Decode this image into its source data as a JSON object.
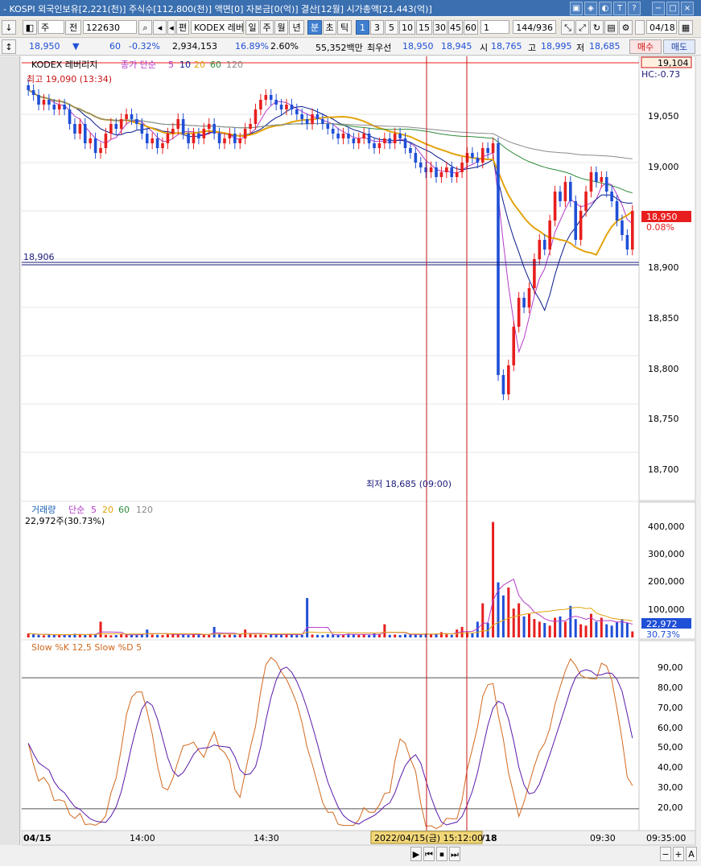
{
  "window": {
    "title": "- KOSPI 외국인보유[2,221(천)] 주식수[112,800(천)] 액면[0] 자본금[0(억)] 결산[12월] 시가총액[21,443(억)]",
    "buttons": [
      "▣",
      "◈",
      "◐",
      "T",
      "?",
      "−",
      "□",
      "×"
    ]
  },
  "toolbar": {
    "type_select": "주",
    "mode": "전",
    "code": "122630",
    "name_prefix": "편",
    "name": "KODEX 레버",
    "periods": [
      "일",
      "주",
      "월",
      "년",
      "분",
      "초",
      "틱"
    ],
    "selected_period": "분",
    "intervals": [
      "1",
      "3",
      "5",
      "10",
      "15",
      "30",
      "45",
      "60"
    ],
    "selected_interval": "1",
    "interval_value": "1",
    "count": "144/936",
    "date": "04/18"
  },
  "quote": {
    "price": "18,950",
    "arrow": "▼",
    "change": "60",
    "change_pct": "-0.32%",
    "volume": "2,934,153",
    "turnover_pct": "16.89%",
    "vol_ratio": "2.60%",
    "amount": "55,352백만",
    "best_label": "최우선",
    "best_ask": "18,950",
    "best_bid": "18,945",
    "open_label": "시",
    "open": "18,765",
    "high_label": "고",
    "high": "18,995",
    "low_label": "저",
    "low": "18,685",
    "buy": "매수",
    "sell": "매도"
  },
  "colors": {
    "up": "#e81e1e",
    "down": "#1f4fd6",
    "ma5": "#b43cc8",
    "ma10": "#0a1a8c",
    "ma20": "#e2a30c",
    "ma60": "#2e8b3a",
    "ma120": "#8a8a8a",
    "stoch_k": "#d2691e",
    "stoch_d": "#5a1aa8"
  },
  "price_panel": {
    "legend_name": "KODEX 레버리지",
    "legend_ma": "종가 단순",
    "legend_periods": [
      "5",
      "10",
      "20",
      "60",
      "120"
    ],
    "high_note": "최고 19,090 (13:34)",
    "low_note": "최저 18,685 (09:00)",
    "hline_label": "18,906",
    "top_label": "19,104",
    "hc_label": "HC:-0.73",
    "cur_price_label": "18,950",
    "cur_pct_label": "0.08%",
    "y_ticks": [
      "19,050",
      "19,000",
      "18,950",
      "18,900",
      "18,850",
      "18,800",
      "18,750",
      "18,700"
    ]
  },
  "volume_panel": {
    "legend_name": "거래량",
    "legend_ma": "단순",
    "legend_periods": [
      "5",
      "20",
      "60",
      "120"
    ],
    "value_note": "22,972주(30.73%)",
    "y_ticks": [
      "400,000",
      "300,000",
      "200,000",
      "100,000"
    ],
    "cur_label": "22,972",
    "cur_pct": "30.73%"
  },
  "stoch_panel": {
    "legend": "Slow %K 12,5  Slow %D 5",
    "y_ticks": [
      "90,00",
      "80,00",
      "70,00",
      "60,00",
      "50,00",
      "40,00",
      "30,00",
      "20,00"
    ]
  },
  "time_axis": {
    "labels": [
      "04/15",
      "14:00",
      "14:30",
      "04/18",
      "09:30"
    ],
    "cursor_label": "2022/04/15(금) 15:12:00",
    "right_label": "09:35:00"
  },
  "bottom_controls": [
    "▶",
    "⏮",
    "⏹",
    "⏭",
    "−",
    "+",
    "A"
  ],
  "chart_data": {
    "type": "candlestick",
    "x_axis_labels": [
      "04/15",
      "14:00",
      "14:30",
      "04/18",
      "09:30"
    ],
    "price_ylim": [
      18650,
      19110
    ],
    "volume_ylim": [
      0,
      460000
    ],
    "stoch_ylim": [
      10,
      97
    ],
    "y_ticks_price": [
      19050,
      19000,
      18950,
      18900,
      18850,
      18800,
      18750,
      18700
    ],
    "reference_line": 18906,
    "current_price": 18950,
    "day_high": 19090,
    "day_low": 18685,
    "candles_close": [
      19075,
      19070,
      19060,
      19065,
      19060,
      19055,
      19060,
      19055,
      19040,
      19030,
      19040,
      19020,
      19025,
      19010,
      19015,
      19030,
      19040,
      19035,
      19045,
      19050,
      19045,
      19040,
      19030,
      19020,
      19025,
      19015,
      19020,
      19030,
      19035,
      19045,
      19030,
      19020,
      19030,
      19025,
      19035,
      19040,
      19030,
      19020,
      19025,
      19030,
      19020,
      19025,
      19035,
      19040,
      19055,
      19065,
      19070,
      19065,
      19060,
      19055,
      19060,
      19055,
      19050,
      19045,
      19040,
      19050,
      19045,
      19040,
      19035,
      19030,
      19025,
      19030,
      19025,
      19020,
      19025,
      19030,
      19020,
      19015,
      19020,
      19025,
      19020,
      19030,
      19025,
      19015,
      19010,
      19000,
      18995,
      18990,
      18995,
      18985,
      18990,
      18995,
      18985,
      18990,
      19000,
      19010,
      19005,
      19000,
      19015,
      19010,
      19020,
      18780,
      18760,
      18790,
      18830,
      18860,
      18850,
      18870,
      18900,
      18920,
      18910,
      18940,
      18970,
      18960,
      18980,
      18960,
      18920,
      18950,
      18970,
      18990,
      18980,
      18985,
      18970,
      18960,
      18940,
      18925,
      18910,
      18950
    ],
    "volume_values": [
      15000,
      12000,
      10000,
      8000,
      11000,
      9000,
      12000,
      10000,
      9000,
      14000,
      11000,
      9000,
      13000,
      12000,
      60000,
      10000,
      8000,
      9000,
      12000,
      11000,
      10000,
      9000,
      13000,
      30000,
      11000,
      10000,
      9000,
      12000,
      14000,
      11000,
      10000,
      9000,
      12000,
      13000,
      11000,
      10000,
      40000,
      12000,
      9000,
      11000,
      10000,
      14000,
      30000,
      12000,
      10000,
      11000,
      9000,
      13000,
      12000,
      10000,
      11000,
      12000,
      9000,
      10000,
      150000,
      11000,
      10000,
      9000,
      12000,
      11000,
      10000,
      9000,
      14000,
      12000,
      10000,
      11000,
      9000,
      15000,
      12000,
      50000,
      10000,
      11000,
      9000,
      12000,
      13000,
      11000,
      10000,
      15000,
      12000,
      14000,
      20000,
      12000,
      10000,
      30000,
      40000,
      20000,
      15000,
      60000,
      130000,
      55000,
      440000,
      210000,
      160000,
      190000,
      110000,
      130000,
      80000,
      90000,
      70000,
      60000,
      55000,
      45000,
      75000,
      80000,
      60000,
      120000,
      70000,
      50000,
      45000,
      90000,
      60000,
      75000,
      50000,
      45000,
      60000,
      70000,
      55000,
      22972
    ]
  }
}
